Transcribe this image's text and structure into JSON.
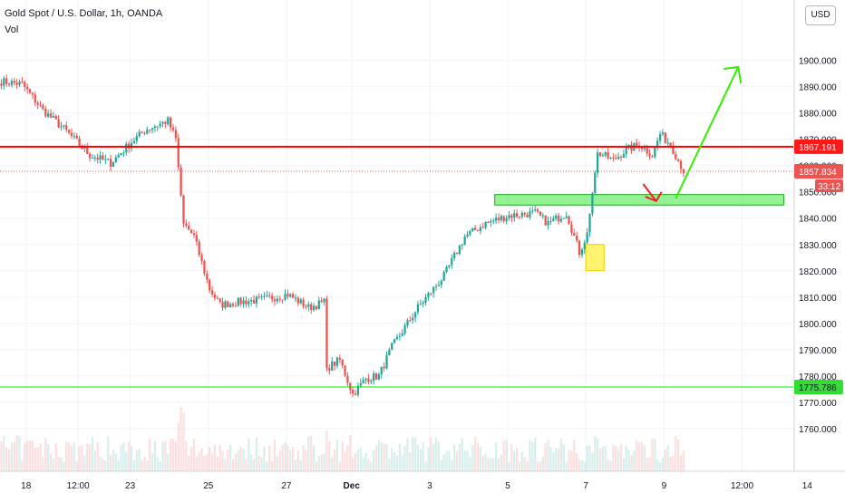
{
  "header": {
    "symbol_title": "Gold Spot / U.S. Dollar, 1h, OANDA",
    "volume_label": "Vol",
    "currency": "USD"
  },
  "colors": {
    "up": "#26a69a",
    "down": "#ef5350",
    "resistance": "#ff0000",
    "support": "#00e600",
    "zone": "#44ee44",
    "highlight": "#ffee33",
    "arrow_up": "#33ee00",
    "arrow_down": "#ee2222",
    "grid": "#f0f3fa"
  },
  "chart_data": {
    "type": "candlestick",
    "title": "Gold Spot / U.S. Dollar, 1h, OANDA",
    "ylabel": "USD",
    "ylim": [
      1752,
      1913
    ],
    "y_ticks": [
      1900.0,
      1890.0,
      1880.0,
      1870.0,
      1860.0,
      1850.0,
      1840.0,
      1830.0,
      1820.0,
      1810.0,
      1800.0,
      1790.0,
      1780.0,
      1770.0,
      1760.0
    ],
    "x_ticks": [
      "18",
      "12:00",
      "23",
      "25",
      "27",
      "Dec",
      "3",
      "5",
      "7",
      "9",
      "12:00",
      "14"
    ],
    "x_tick_bars": [
      10,
      30,
      50,
      80,
      110,
      135,
      165,
      195,
      225,
      255,
      285,
      310
    ],
    "price_path": [
      [
        0,
        1892
      ],
      [
        8,
        1891
      ],
      [
        16,
        1881
      ],
      [
        24,
        1874
      ],
      [
        34,
        1864
      ],
      [
        42,
        1861
      ],
      [
        50,
        1869
      ],
      [
        56,
        1874
      ],
      [
        64,
        1877
      ],
      [
        67,
        1870
      ],
      [
        70,
        1838
      ],
      [
        74,
        1833
      ],
      [
        80,
        1813
      ],
      [
        84,
        1807
      ],
      [
        90,
        1808
      ],
      [
        100,
        1809
      ],
      [
        110,
        1811
      ],
      [
        118,
        1806
      ],
      [
        124,
        1808
      ],
      [
        125,
        1783
      ],
      [
        130,
        1786
      ],
      [
        135,
        1773
      ],
      [
        140,
        1779
      ],
      [
        145,
        1780
      ],
      [
        150,
        1791
      ],
      [
        160,
        1806
      ],
      [
        170,
        1818
      ],
      [
        178,
        1833
      ],
      [
        186,
        1838
      ],
      [
        195,
        1841
      ],
      [
        205,
        1842
      ],
      [
        210,
        1838
      ],
      [
        217,
        1842
      ],
      [
        222,
        1827
      ],
      [
        225,
        1834
      ],
      [
        229,
        1865
      ],
      [
        235,
        1862
      ],
      [
        240,
        1866
      ],
      [
        245,
        1868
      ],
      [
        250,
        1864
      ],
      [
        253,
        1872
      ],
      [
        257,
        1868
      ],
      [
        262,
        1858
      ]
    ],
    "bar_count": 263,
    "annotations": {
      "resistance_level": 1867.191,
      "support_level": 1775.786,
      "last_price": 1857.834,
      "countdown": "33:12",
      "zone": {
        "from_bar": 190,
        "to_bar": 301,
        "low": 1845.0,
        "high": 1849.0
      },
      "highlight_box": {
        "from_bar": 225,
        "to_bar": 232,
        "low": 1820.0,
        "high": 1830.0
      }
    },
    "labels": {
      "resistance": "1867.191",
      "last": "1857.834",
      "countdown": "33:12",
      "support": "1775.786"
    }
  }
}
